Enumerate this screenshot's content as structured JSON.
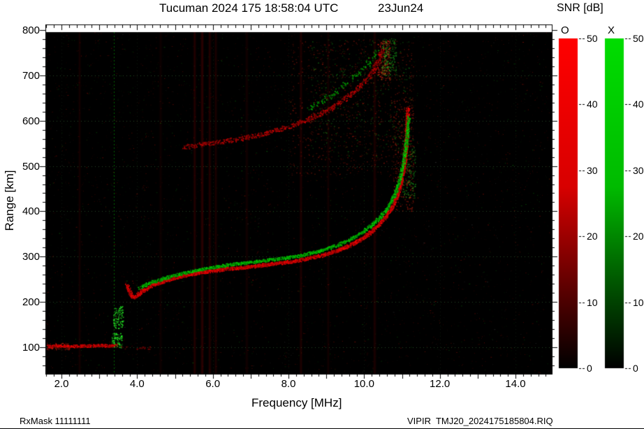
{
  "title": {
    "main": "Tucuman 2024 175 18:58:04 UTC",
    "date": "23Jun24"
  },
  "axes": {
    "x_label": "Frequency [MHz]",
    "y_label": "Range [km]",
    "x_ticks": [
      "2.0",
      "4.0",
      "6.0",
      "8.0",
      "10.0",
      "12.0",
      "14.0"
    ],
    "x_tick_values": [
      2,
      4,
      6,
      8,
      10,
      12,
      14
    ],
    "y_ticks": [
      "100",
      "200",
      "300",
      "400",
      "500",
      "600",
      "700",
      "800"
    ],
    "y_tick_values": [
      100,
      200,
      300,
      400,
      500,
      600,
      700,
      800
    ]
  },
  "legend": {
    "title": "SNR [dB]",
    "o_label": "O",
    "x_label": "X",
    "tick_values": [
      0,
      10,
      20,
      30,
      40,
      50
    ],
    "o_color": "#ff0000",
    "x_color": "#00dd00"
  },
  "footer": {
    "left": "RxMask 11111111",
    "right": "VIPIR  TMJ20_2024175185804.RIQ"
  },
  "chart_data": {
    "type": "scatter",
    "description": "VIPIR ionogram: O-mode (red) and X-mode (green) echo traces vs frequency and virtual range, SNR color scale 0-50 dB",
    "station": "Tucuman",
    "timestamp_utc": "2024 175 18:58:04 UTC",
    "date": "23Jun24",
    "xlabel": "Frequency [MHz]",
    "ylabel": "Range [km]",
    "xlim": [
      1.58,
      15.0
    ],
    "ylim": [
      41,
      812
    ],
    "snr_scale": {
      "label": "SNR [dB]",
      "min": 0,
      "max": 50
    },
    "critical_frequencies": {
      "foF2_approx_MHz": 11.1
    },
    "series": [
      {
        "name": "O-mode F-layer first hop",
        "color": "#ff0000",
        "draw": {
          "thickness": 4,
          "spread": 2.4,
          "density": 1,
          "min_bright": 0.55
        },
        "points": [
          [
            3.72,
            238
          ],
          [
            3.78,
            226
          ],
          [
            3.82,
            217
          ],
          [
            3.88,
            211
          ],
          [
            3.95,
            212
          ],
          [
            4.03,
            218
          ],
          [
            4.12,
            225
          ],
          [
            4.28,
            233
          ],
          [
            4.5,
            241
          ],
          [
            4.75,
            248
          ],
          [
            5.0,
            254
          ],
          [
            5.3,
            260
          ],
          [
            5.6,
            265
          ],
          [
            6.0,
            270
          ],
          [
            6.4,
            274
          ],
          [
            6.8,
            277
          ],
          [
            7.2,
            281
          ],
          [
            7.6,
            285
          ],
          [
            8.0,
            289
          ],
          [
            8.4,
            295
          ],
          [
            8.8,
            302
          ],
          [
            9.2,
            312
          ],
          [
            9.6,
            325
          ],
          [
            9.9,
            339
          ],
          [
            10.15,
            354
          ],
          [
            10.38,
            371
          ],
          [
            10.58,
            391
          ],
          [
            10.74,
            412
          ],
          [
            10.86,
            435
          ],
          [
            10.95,
            460
          ],
          [
            11.02,
            487
          ],
          [
            11.07,
            514
          ],
          [
            11.1,
            545
          ],
          [
            11.12,
            578
          ],
          [
            11.14,
            608
          ],
          [
            11.15,
            628
          ]
        ]
      },
      {
        "name": "X-mode F-layer first hop",
        "color": "#00e000",
        "draw": {
          "thickness": 3,
          "spread": 2.2,
          "density": 0.95,
          "min_bright": 0.5
        },
        "points": [
          [
            4.05,
            231
          ],
          [
            4.2,
            238
          ],
          [
            4.4,
            245
          ],
          [
            4.65,
            252
          ],
          [
            4.95,
            259
          ],
          [
            5.25,
            265
          ],
          [
            5.6,
            271
          ],
          [
            5.95,
            277
          ],
          [
            6.35,
            282
          ],
          [
            6.75,
            286
          ],
          [
            7.15,
            290
          ],
          [
            7.55,
            294
          ],
          [
            7.95,
            298
          ],
          [
            8.35,
            304
          ],
          [
            8.75,
            312
          ],
          [
            9.15,
            322
          ],
          [
            9.5,
            334
          ],
          [
            9.8,
            347
          ],
          [
            10.05,
            361
          ],
          [
            10.3,
            378
          ],
          [
            10.5,
            396
          ],
          [
            10.67,
            416
          ],
          [
            10.8,
            438
          ],
          [
            10.9,
            462
          ],
          [
            10.98,
            489
          ],
          [
            11.05,
            517
          ],
          [
            11.1,
            548
          ],
          [
            11.14,
            580
          ],
          [
            11.17,
            610
          ]
        ]
      },
      {
        "name": "O-mode second hop",
        "color": "#d40000",
        "draw": {
          "thickness": 3,
          "spread": 3.2,
          "density": 0.75,
          "min_bright": 0.35
        },
        "points": [
          [
            5.25,
            543
          ],
          [
            5.5,
            546
          ],
          [
            5.8,
            549
          ],
          [
            6.1,
            553
          ],
          [
            6.5,
            558
          ],
          [
            6.9,
            564
          ],
          [
            7.3,
            571
          ],
          [
            7.7,
            580
          ],
          [
            8.1,
            591
          ],
          [
            8.5,
            604
          ],
          [
            8.9,
            619
          ],
          [
            9.2,
            633
          ],
          [
            9.5,
            650
          ],
          [
            9.8,
            670
          ],
          [
            10.05,
            692
          ],
          [
            10.25,
            714
          ],
          [
            10.38,
            736
          ],
          [
            10.48,
            758
          ]
        ]
      },
      {
        "name": "X-mode second hop",
        "color": "#00c000",
        "draw": {
          "thickness": 2,
          "spread": 3.5,
          "density": 0.5,
          "min_bright": 0.35
        },
        "points": [
          [
            8.55,
            628
          ],
          [
            8.9,
            645
          ],
          [
            9.2,
            662
          ],
          [
            9.5,
            682
          ],
          [
            9.8,
            703
          ],
          [
            10.05,
            724
          ],
          [
            10.25,
            745
          ],
          [
            10.42,
            763
          ]
        ]
      },
      {
        "name": "E-layer O-mode",
        "color": "#ff0000",
        "draw": {
          "thickness": 3,
          "spread": 2.0,
          "density": 0.95,
          "min_bright": 0.5
        },
        "points": [
          [
            1.62,
            103
          ],
          [
            1.95,
            104
          ],
          [
            2.3,
            103
          ],
          [
            2.65,
            104
          ],
          [
            3.0,
            105
          ],
          [
            3.25,
            104
          ],
          [
            3.45,
            106
          ]
        ]
      },
      {
        "name": "E-layer faint extension",
        "color": "#8a0000",
        "draw": {
          "thickness": 2,
          "spread": 2.0,
          "density": 0.35,
          "min_bright": 0.2
        },
        "points": [
          [
            3.55,
            100
          ],
          [
            3.85,
            99
          ],
          [
            4.15,
            100
          ],
          [
            4.35,
            100
          ]
        ]
      }
    ],
    "scatter_regions": [
      {
        "f": [
          3.32,
          3.6
        ],
        "r": [
          100,
          132
        ],
        "n": 90,
        "c": "green",
        "a": 0.9
      },
      {
        "f": [
          3.36,
          3.62
        ],
        "r": [
          142,
          192
        ],
        "n": 110,
        "c": "green",
        "a": 0.9
      },
      {
        "f": [
          8.0,
          11.3
        ],
        "r": [
          480,
          780
        ],
        "n": 700,
        "c": "red",
        "a": 0.35
      },
      {
        "f": [
          8.6,
          11.25
        ],
        "r": [
          520,
          780
        ],
        "n": 300,
        "c": "green",
        "a": 0.3
      },
      {
        "f": [
          10.75,
          11.3
        ],
        "r": [
          400,
          650
        ],
        "n": 300,
        "c": "red",
        "a": 0.5
      },
      {
        "f": [
          11.0,
          11.35
        ],
        "r": [
          430,
          560
        ],
        "n": 130,
        "c": "green",
        "a": 0.5
      },
      {
        "f": [
          10.35,
          10.68
        ],
        "r": [
          690,
          778
        ],
        "n": 220,
        "c": "red",
        "a": 0.55
      },
      {
        "f": [
          10.45,
          10.85
        ],
        "r": [
          700,
          782
        ],
        "n": 160,
        "c": "green",
        "a": 0.5
      },
      {
        "f": [
          1.6,
          2.2
        ],
        "r": [
          95,
          110
        ],
        "n": 80,
        "c": "red",
        "a": 0.5
      }
    ],
    "interference": {
      "green_dashed_mhz": 3.38,
      "red_rfi": [
        {
          "f": 5.52,
          "a": 0.1
        },
        {
          "f": 5.72,
          "a": 0.13
        },
        {
          "f": 5.92,
          "a": 0.1
        },
        {
          "f": 6.08,
          "a": 0.07
        },
        {
          "f": 6.9,
          "a": 0.05
        },
        {
          "f": 8.33,
          "a": 0.09
        },
        {
          "f": 9.05,
          "a": 0.05
        },
        {
          "f": 10.28,
          "a": 0.08
        },
        {
          "f": 2.48,
          "a": 0.05
        },
        {
          "f": 4.62,
          "a": 0.04
        }
      ]
    },
    "gridlines": {
      "horizontal_km": [
        100,
        200,
        300,
        400,
        500,
        600,
        700,
        800
      ],
      "style": "dotted"
    },
    "background_noise": {
      "count": 5200
    }
  }
}
